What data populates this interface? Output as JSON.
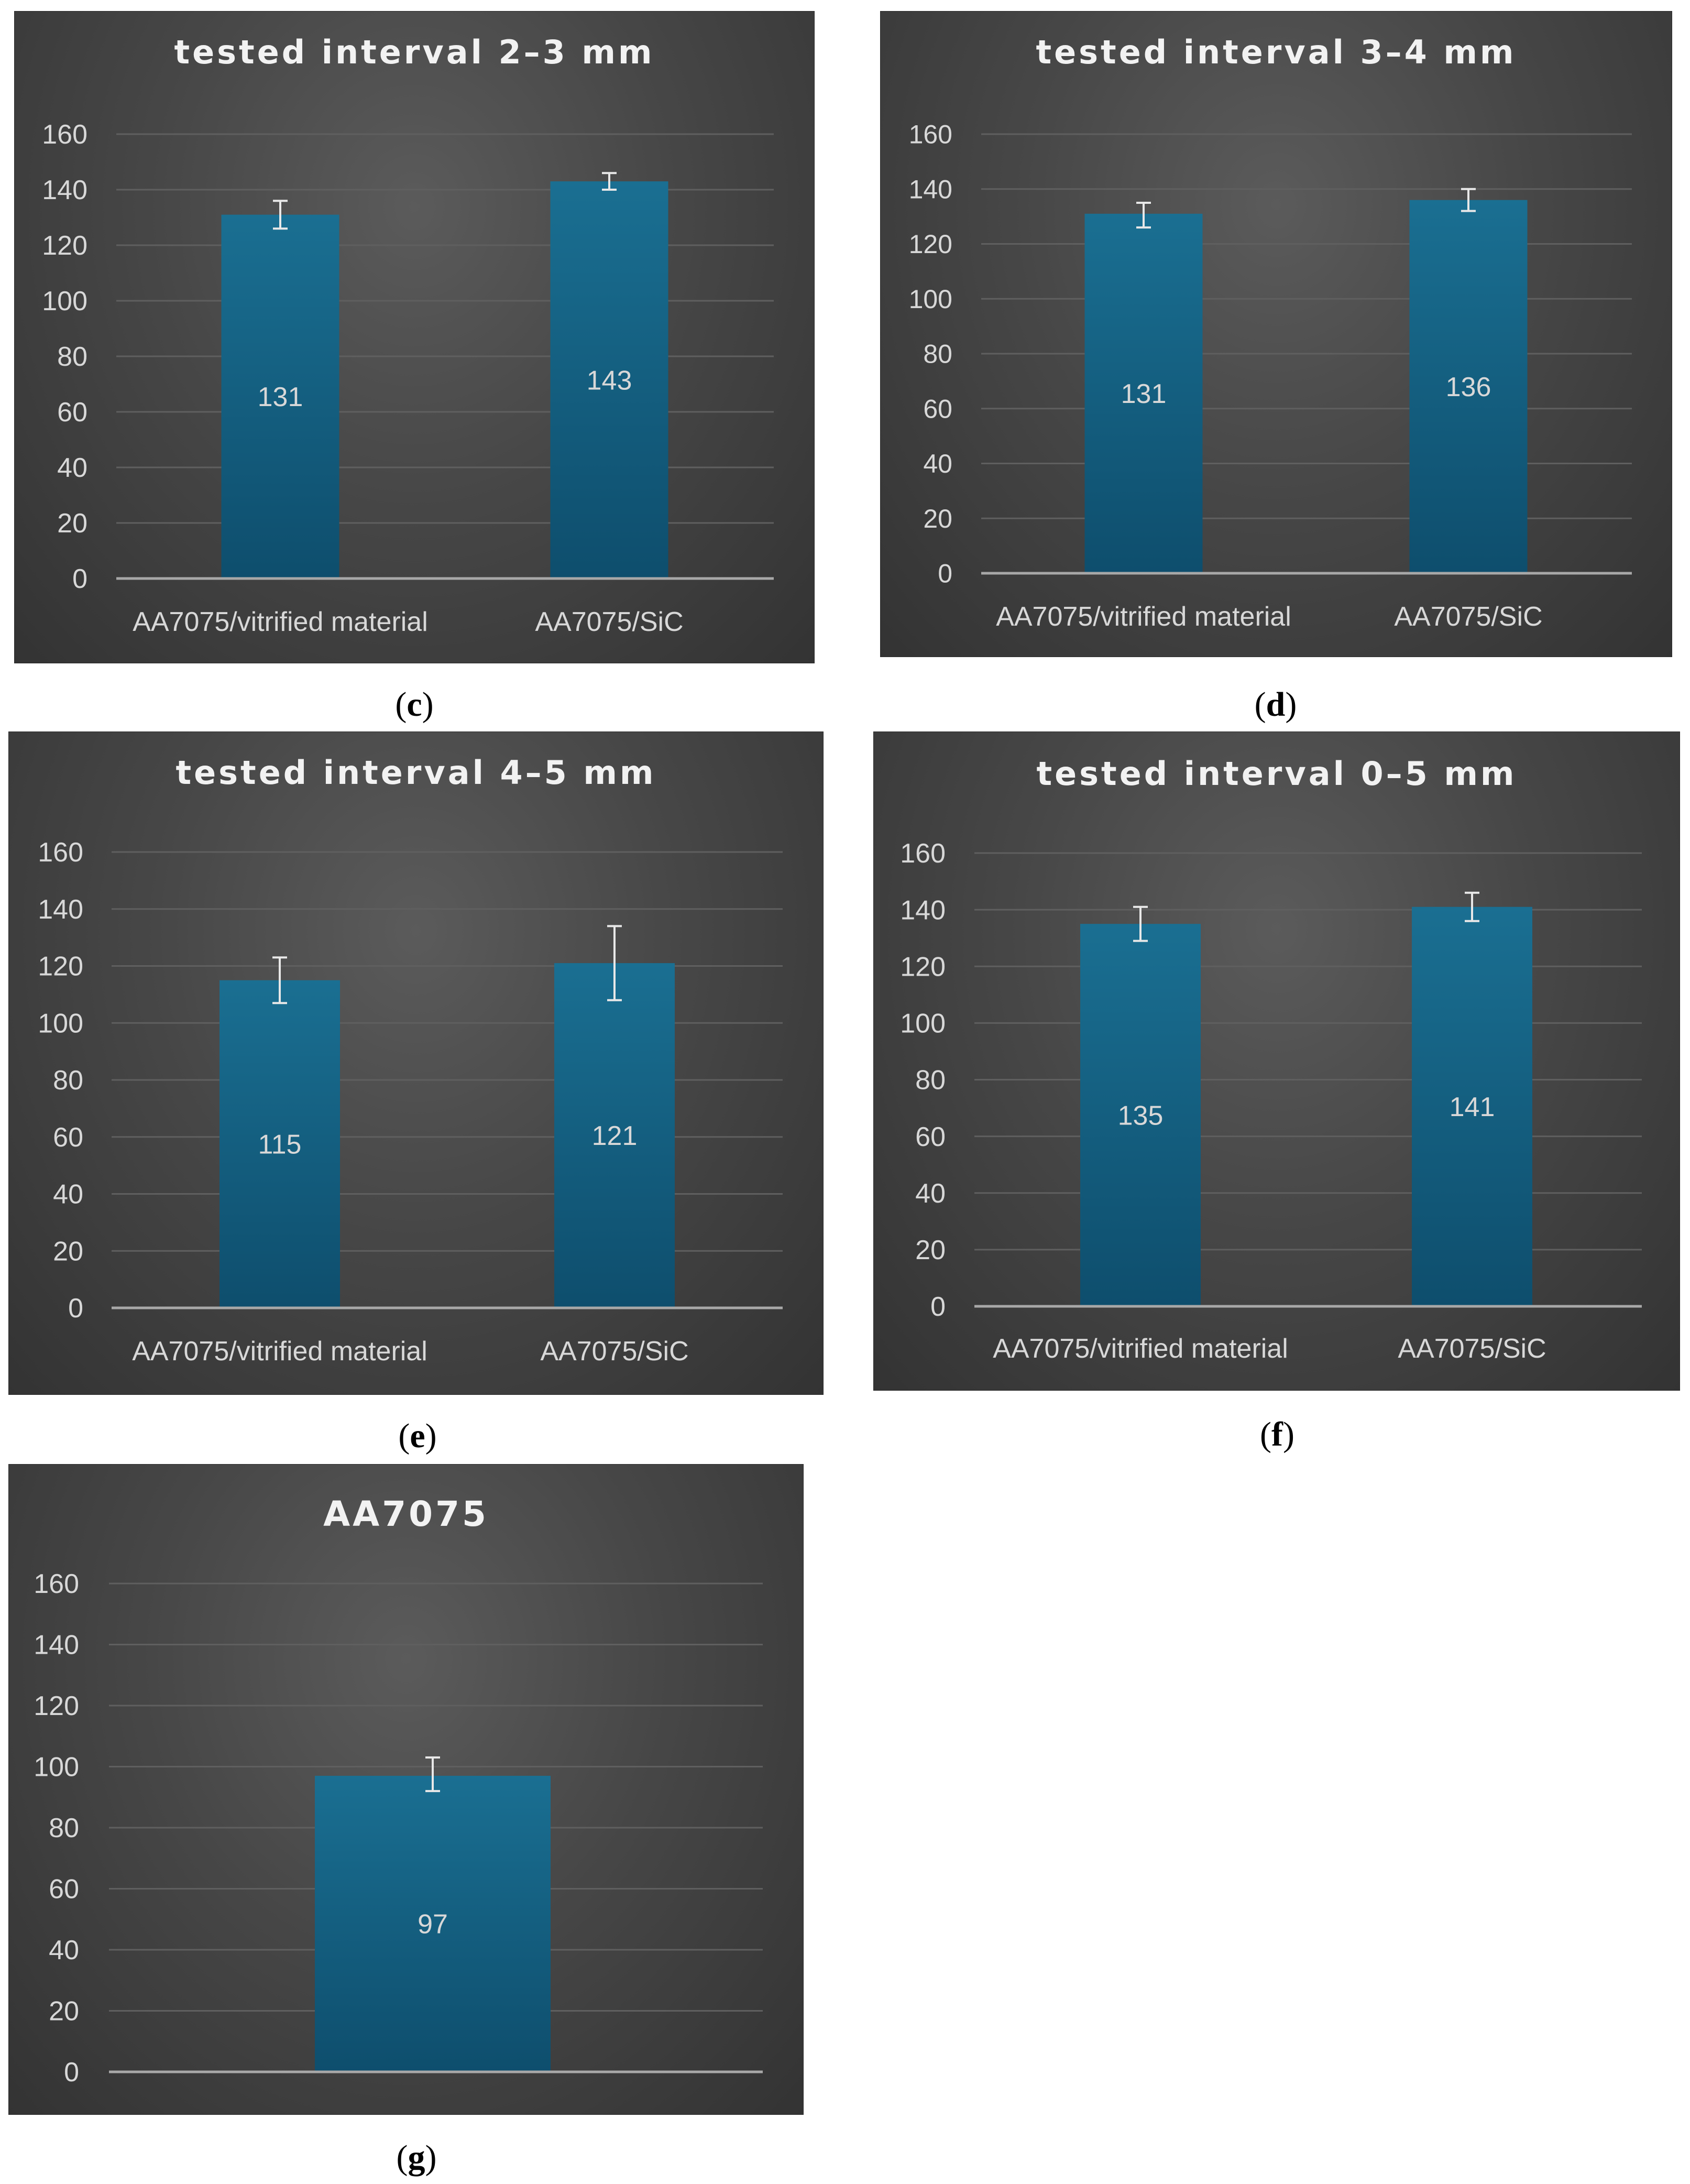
{
  "colors": {
    "bar_top": "#1a6f92",
    "bar_bottom": "#0e4e6d",
    "gridline": "#5f5f5f",
    "axis_line": "#a8a8a8",
    "text": "#d8d8d8",
    "title": "#f2f2f2",
    "error_bar": "#e8e8e8"
  },
  "captions": [
    {
      "open": "(",
      "letter": "c",
      "close": ")"
    },
    {
      "open": "(",
      "letter": "d",
      "close": ")"
    },
    {
      "open": "(",
      "letter": "e",
      "close": ")"
    },
    {
      "open": "(",
      "letter": "f",
      "close": ")"
    },
    {
      "open": "(",
      "letter": "g",
      "close": ")"
    }
  ],
  "chart_data": [
    {
      "type": "bar",
      "title": "tested interval 2–3 mm",
      "categories": [
        "AA7075/vitrified material",
        "AA7075/SiC"
      ],
      "values": [
        131,
        143
      ],
      "data_labels": [
        "131",
        "143"
      ],
      "error_bars": [
        [
          126,
          136
        ],
        [
          140,
          146
        ]
      ],
      "ylim": [
        0,
        160
      ],
      "yticks": [
        "0",
        "20",
        "40",
        "60",
        "80",
        "100",
        "120",
        "140",
        "160"
      ],
      "grid": true
    },
    {
      "type": "bar",
      "title": "tested interval 3–4 mm",
      "categories": [
        "AA7075/vitrified material",
        "AA7075/SiC"
      ],
      "values": [
        131,
        136
      ],
      "data_labels": [
        "131",
        "136"
      ],
      "error_bars": [
        [
          126,
          135
        ],
        [
          132,
          140
        ]
      ],
      "ylim": [
        0,
        160
      ],
      "yticks": [
        "0",
        "20",
        "40",
        "60",
        "80",
        "100",
        "120",
        "140",
        "160"
      ],
      "grid": true
    },
    {
      "type": "bar",
      "title": "tested interval 4–5 mm",
      "categories": [
        "AA7075/vitrified material",
        "AA7075/SiC"
      ],
      "values": [
        115,
        121
      ],
      "data_labels": [
        "115",
        "121"
      ],
      "error_bars": [
        [
          107,
          123
        ],
        [
          108,
          134
        ]
      ],
      "ylim": [
        0,
        160
      ],
      "yticks": [
        "0",
        "20",
        "40",
        "60",
        "80",
        "100",
        "120",
        "140",
        "160"
      ],
      "grid": true
    },
    {
      "type": "bar",
      "title": "tested interval 0–5 mm",
      "categories": [
        "AA7075/vitrified material",
        "AA7075/SiC"
      ],
      "values": [
        135,
        141
      ],
      "data_labels": [
        "135",
        "141"
      ],
      "error_bars": [
        [
          129,
          141
        ],
        [
          136,
          146
        ]
      ],
      "ylim": [
        0,
        160
      ],
      "yticks": [
        "0",
        "20",
        "40",
        "60",
        "80",
        "100",
        "120",
        "140",
        "160"
      ],
      "grid": true
    },
    {
      "type": "bar",
      "title": "AA7075",
      "categories": [
        ""
      ],
      "values": [
        97
      ],
      "data_labels": [
        "97"
      ],
      "error_bars": [
        [
          92,
          103
        ]
      ],
      "ylim": [
        0,
        160
      ],
      "yticks": [
        "0",
        "20",
        "40",
        "60",
        "80",
        "100",
        "120",
        "140",
        "160"
      ],
      "grid": true
    }
  ]
}
